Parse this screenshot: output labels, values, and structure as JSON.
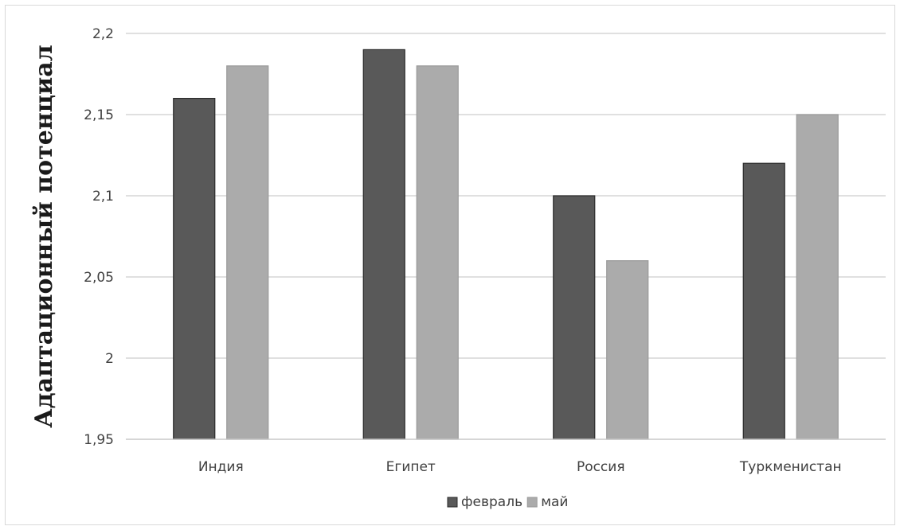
{
  "chart_data": {
    "type": "bar",
    "title": "",
    "xlabel": "",
    "ylabel": "Адаптационный потенциал",
    "categories": [
      "Индия",
      "Египет",
      "Россия",
      "Туркменистан"
    ],
    "series": [
      {
        "name": "февраль",
        "color": "#595959",
        "values": [
          2.16,
          2.19,
          2.1,
          2.12
        ]
      },
      {
        "name": "май",
        "color": "#ababab",
        "values": [
          2.18,
          2.18,
          2.06,
          2.15
        ]
      }
    ],
    "ylim": [
      1.95,
      2.2
    ],
    "yticks": [
      {
        "value": 1.95,
        "label": "1,95"
      },
      {
        "value": 2.0,
        "label": "2"
      },
      {
        "value": 2.05,
        "label": "2,05"
      },
      {
        "value": 2.1,
        "label": "2,1"
      },
      {
        "value": 2.15,
        "label": "2,15"
      },
      {
        "value": 2.2,
        "label": "2,2"
      }
    ],
    "grid": true,
    "legend_position": "bottom"
  }
}
